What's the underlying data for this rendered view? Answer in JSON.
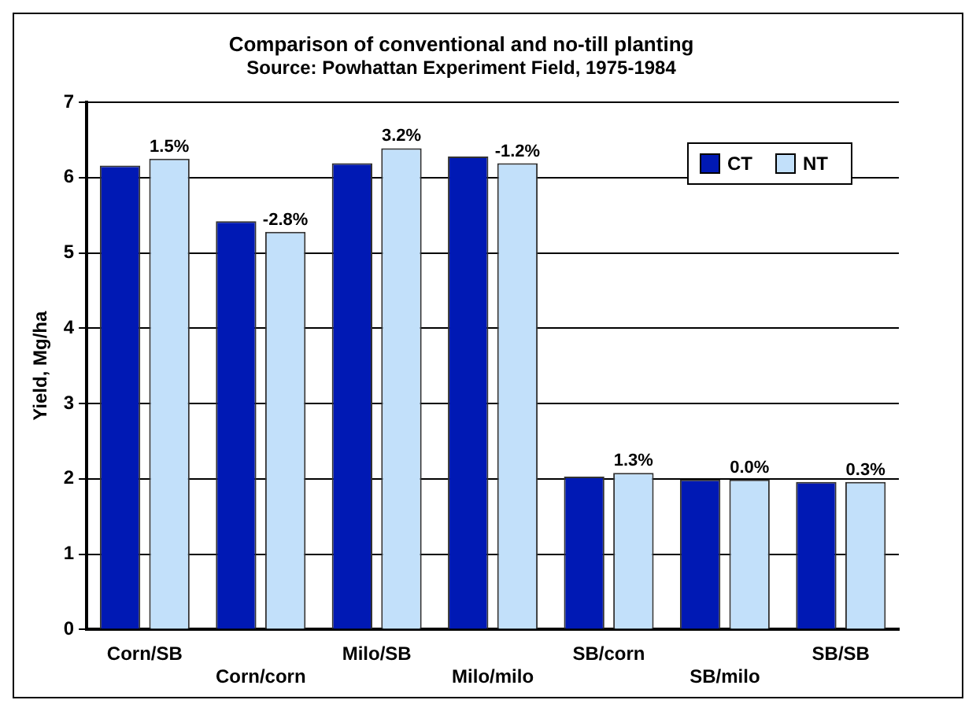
{
  "chart_data": {
    "type": "bar",
    "title": "Comparison of conventional and no-till planting",
    "subtitle": "Source: Powhattan Experiment Field, 1975-1984",
    "ylabel": "Yield, Mg/ha",
    "categories": [
      "Corn/SB",
      "Corn/corn",
      "Milo/SB",
      "Milo/milo",
      "SB/corn",
      "SB/milo",
      "SB/SB"
    ],
    "series": [
      {
        "name": "CT",
        "color": "#0019b4",
        "values": [
          6.16,
          5.42,
          6.19,
          6.28,
          2.03,
          1.99,
          1.96
        ]
      },
      {
        "name": "NT",
        "color": "#c2e0fa",
        "values": [
          6.25,
          5.28,
          6.39,
          6.19,
          2.08,
          1.99,
          1.96
        ]
      }
    ],
    "annotations": [
      {
        "text": "1.5%",
        "x": "Corn/SB",
        "y": 6.25
      },
      {
        "text": "-2.8%",
        "x": "Corn/corn",
        "y": 5.28
      },
      {
        "text": "3.2%",
        "x": "Milo/SB",
        "y": 6.39
      },
      {
        "text": "-1.2%",
        "x": "Milo/milo",
        "y": 6.19
      },
      {
        "text": "1.3%",
        "x": "SB/corn",
        "y": 2.08
      },
      {
        "text": "0.0%",
        "x": "SB/milo",
        "y": 1.99
      },
      {
        "text": "0.3%",
        "x": "SB/SB",
        "y": 1.96
      }
    ],
    "ylim": [
      0,
      7
    ],
    "yticks": [
      0,
      1,
      2,
      3,
      4,
      5,
      6,
      7
    ],
    "grid": "y",
    "legend": "top right"
  }
}
